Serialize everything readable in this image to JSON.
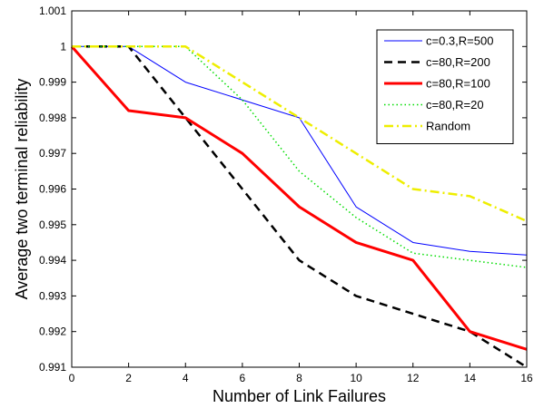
{
  "chart_data": {
    "type": "line",
    "title": "",
    "xlabel": "Number of Link Failures",
    "ylabel": "Average two terminal reliability",
    "xlim": [
      0,
      16
    ],
    "ylim": [
      0.991,
      1.001
    ],
    "xticks": [
      0,
      2,
      4,
      6,
      8,
      10,
      12,
      14,
      16
    ],
    "yticks": [
      0.991,
      0.992,
      0.993,
      0.994,
      0.995,
      0.996,
      0.997,
      0.998,
      0.999,
      1,
      1.001
    ],
    "xtick_labels": [
      "0",
      "2",
      "4",
      "6",
      "8",
      "10",
      "12",
      "14",
      "16"
    ],
    "ytick_labels": [
      "0.991",
      "0.992",
      "0.993",
      "0.994",
      "0.995",
      "0.996",
      "0.997",
      "0.998",
      "0.999",
      "1",
      "1.001"
    ],
    "grid": false,
    "legend_position": "top-right",
    "series": [
      {
        "name": "c=0.3,R=500",
        "color": "#0000ff",
        "style": "solid-thin",
        "x": [
          0,
          2,
          4,
          6,
          8,
          10,
          12,
          14,
          16
        ],
        "values": [
          1.0,
          1.0,
          0.999,
          0.9985,
          0.998,
          0.9955,
          0.9945,
          0.99425,
          0.99415
        ]
      },
      {
        "name": "c=80,R=200",
        "color": "#000000",
        "style": "dashed",
        "x": [
          0,
          2,
          4,
          6,
          8,
          10,
          12,
          14,
          16
        ],
        "values": [
          1.0,
          1.0,
          0.998,
          0.996,
          0.994,
          0.993,
          0.9925,
          0.992,
          0.991
        ]
      },
      {
        "name": "c=80,R=100",
        "color": "#ff0000",
        "style": "solid-thick",
        "x": [
          0,
          2,
          4,
          6,
          8,
          10,
          12,
          14,
          16
        ],
        "values": [
          1.0,
          0.9982,
          0.998,
          0.997,
          0.9955,
          0.9945,
          0.994,
          0.992,
          0.9915
        ]
      },
      {
        "name": "c=80,R=20",
        "color": "#00dd00",
        "style": "dotted",
        "x": [
          0,
          2,
          4,
          6,
          8,
          10,
          12,
          14,
          16
        ],
        "values": [
          1.0,
          1.0,
          1.0,
          0.9985,
          0.9965,
          0.9952,
          0.9942,
          0.994,
          0.9938
        ]
      },
      {
        "name": "Random",
        "color": "#eeee00",
        "style": "dashdot",
        "x": [
          0,
          2,
          4,
          6,
          8,
          10,
          12,
          14,
          16
        ],
        "values": [
          1.0,
          1.0,
          1.0,
          0.999,
          0.998,
          0.997,
          0.996,
          0.9958,
          0.9951
        ]
      }
    ]
  }
}
